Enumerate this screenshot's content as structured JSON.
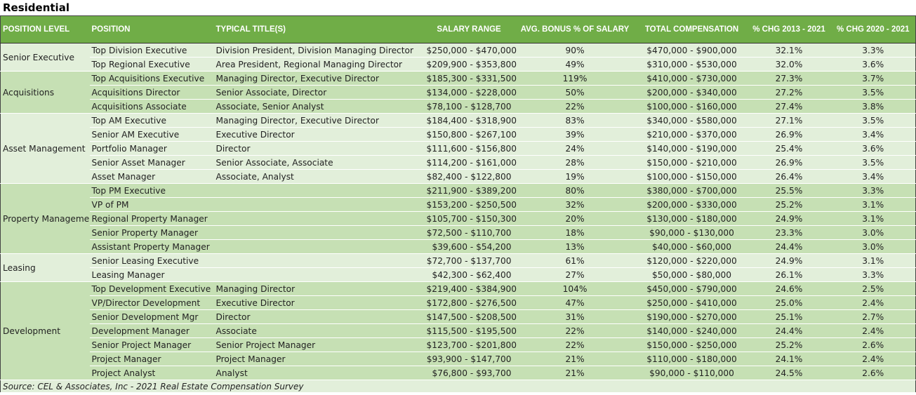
{
  "title": "Residential",
  "colors": {
    "header": "#70ad47",
    "row_light": "#e2efda",
    "row_dark": "#c6e0b4"
  },
  "headers": [
    "POSITION LEVEL",
    "POSITION",
    "TYPICAL TITLE(S)",
    "SALARY RANGE",
    "AVG. BONUS % OF SALARY",
    "TOTAL COMPENSATION",
    "% CHG 2013 - 2021",
    "% CHG 2020 - 2021"
  ],
  "groups": [
    {
      "level": "Senior Executive",
      "shade": "light",
      "rows": [
        [
          "Top Division Executive",
          "Division President, Division Managing Director",
          "$250,000 - $470,000",
          "90%",
          "$470,000 - $900,000",
          "32.1%",
          "3.3%"
        ],
        [
          "Top Regional Executive",
          "Area President, Regional Managing Director",
          "$209,900 - $353,800",
          "49%",
          "$310,000 - $530,000",
          "32.0%",
          "3.6%"
        ]
      ]
    },
    {
      "level": "Acquisitions",
      "shade": "dark",
      "rows": [
        [
          "Top Acquisitions Executive",
          "Managing Director, Executive Director",
          "$185,300 - $331,500",
          "119%",
          "$410,000 - $730,000",
          "27.3%",
          "3.7%"
        ],
        [
          "Acquisitions Director",
          "Senior Associate, Director",
          "$134,000 - $228,000",
          "50%",
          "$200,000 - $340,000",
          "27.2%",
          "3.5%"
        ],
        [
          "Acquisitions Associate",
          "Associate, Senior Analyst",
          "$78,100 - $128,700",
          "22%",
          "$100,000 - $160,000",
          "27.4%",
          "3.8%"
        ]
      ]
    },
    {
      "level": "Asset Management",
      "shade": "light",
      "rows": [
        [
          "Top AM Executive",
          "Managing Director, Executive Director",
          "$184,400 - $318,900",
          "83%",
          "$340,000 - $580,000",
          "27.1%",
          "3.5%"
        ],
        [
          "Senior AM Executive",
          "Executive Director",
          "$150,800 - $267,100",
          "39%",
          "$210,000 - $370,000",
          "26.9%",
          "3.4%"
        ],
        [
          "Portfolio Manager",
          "Director",
          "$111,600 - $156,800",
          "24%",
          "$140,000 - $190,000",
          "25.4%",
          "3.6%"
        ],
        [
          "Senior Asset Manager",
          "Senior Associate, Associate",
          "$114,200 - $161,000",
          "28%",
          "$150,000 - $210,000",
          "26.9%",
          "3.5%"
        ],
        [
          "Asset Manager",
          "Associate, Analyst",
          "$82,400 - $122,800",
          "19%",
          "$100,000 - $150,000",
          "26.4%",
          "3.4%"
        ]
      ]
    },
    {
      "level": "Property Manageme",
      "shade": "dark",
      "rows": [
        [
          "Top PM Executive",
          "",
          "$211,900 - $389,200",
          "80%",
          "$380,000 - $700,000",
          "25.5%",
          "3.3%"
        ],
        [
          "VP of PM",
          "",
          "$153,200 - $250,500",
          "32%",
          "$200,000 - $330,000",
          "25.2%",
          "3.1%"
        ],
        [
          "Regional Property Manager",
          "",
          "$105,700 - $150,300",
          "20%",
          "$130,000 - $180,000",
          "24.9%",
          "3.1%"
        ],
        [
          "Senior Property Manager",
          "",
          "$72,500 - $110,700",
          "18%",
          "$90,000 - $130,000",
          "23.3%",
          "3.0%"
        ],
        [
          "Assistant Property Manager",
          "",
          "$39,600 - $54,200",
          "13%",
          "$40,000 - $60,000",
          "24.4%",
          "3.0%"
        ]
      ]
    },
    {
      "level": "Leasing",
      "shade": "light",
      "rows": [
        [
          "Senior Leasing Executive",
          "",
          "$72,700 - $137,700",
          "61%",
          "$120,000 - $220,000",
          "24.9%",
          "3.1%"
        ],
        [
          "Leasing Manager",
          "",
          "$42,300 - $62,400",
          "27%",
          "$50,000 - $80,000",
          "26.1%",
          "3.3%"
        ]
      ]
    },
    {
      "level": "Development",
      "shade": "dark",
      "rows": [
        [
          "Top Development Executive",
          "Managing Director",
          "$219,400 - $384,900",
          "104%",
          "$450,000 - $790,000",
          "24.6%",
          "2.5%"
        ],
        [
          "VP/Director Development",
          "Executive Director",
          "$172,800 - $276,500",
          "47%",
          "$250,000 - $410,000",
          "25.0%",
          "2.4%"
        ],
        [
          "Senior Development Mgr",
          "Director",
          "$147,500 - $208,500",
          "31%",
          "$190,000 - $270,000",
          "25.1%",
          "2.7%"
        ],
        [
          "Development Manager",
          "Associate",
          "$115,500 - $195,500",
          "22%",
          "$140,000 - $240,000",
          "24.4%",
          "2.4%"
        ],
        [
          "Senior Project Manager",
          "Senior Project Manager",
          "$123,700 - $201,800",
          "22%",
          "$150,000 - $250,000",
          "25.2%",
          "2.6%"
        ],
        [
          "Project Manager",
          "Project Manager",
          "$93,900 - $147,700",
          "21%",
          "$110,000 - $180,000",
          "24.1%",
          "2.4%"
        ],
        [
          "Project Analyst",
          "Analyst",
          "$76,800 - $93,700",
          "21%",
          "$90,000 - $110,000",
          "24.5%",
          "2.6%"
        ]
      ]
    }
  ],
  "source": "Source: CEL & Associates, Inc - 2021 Real Estate Compensation Survey"
}
